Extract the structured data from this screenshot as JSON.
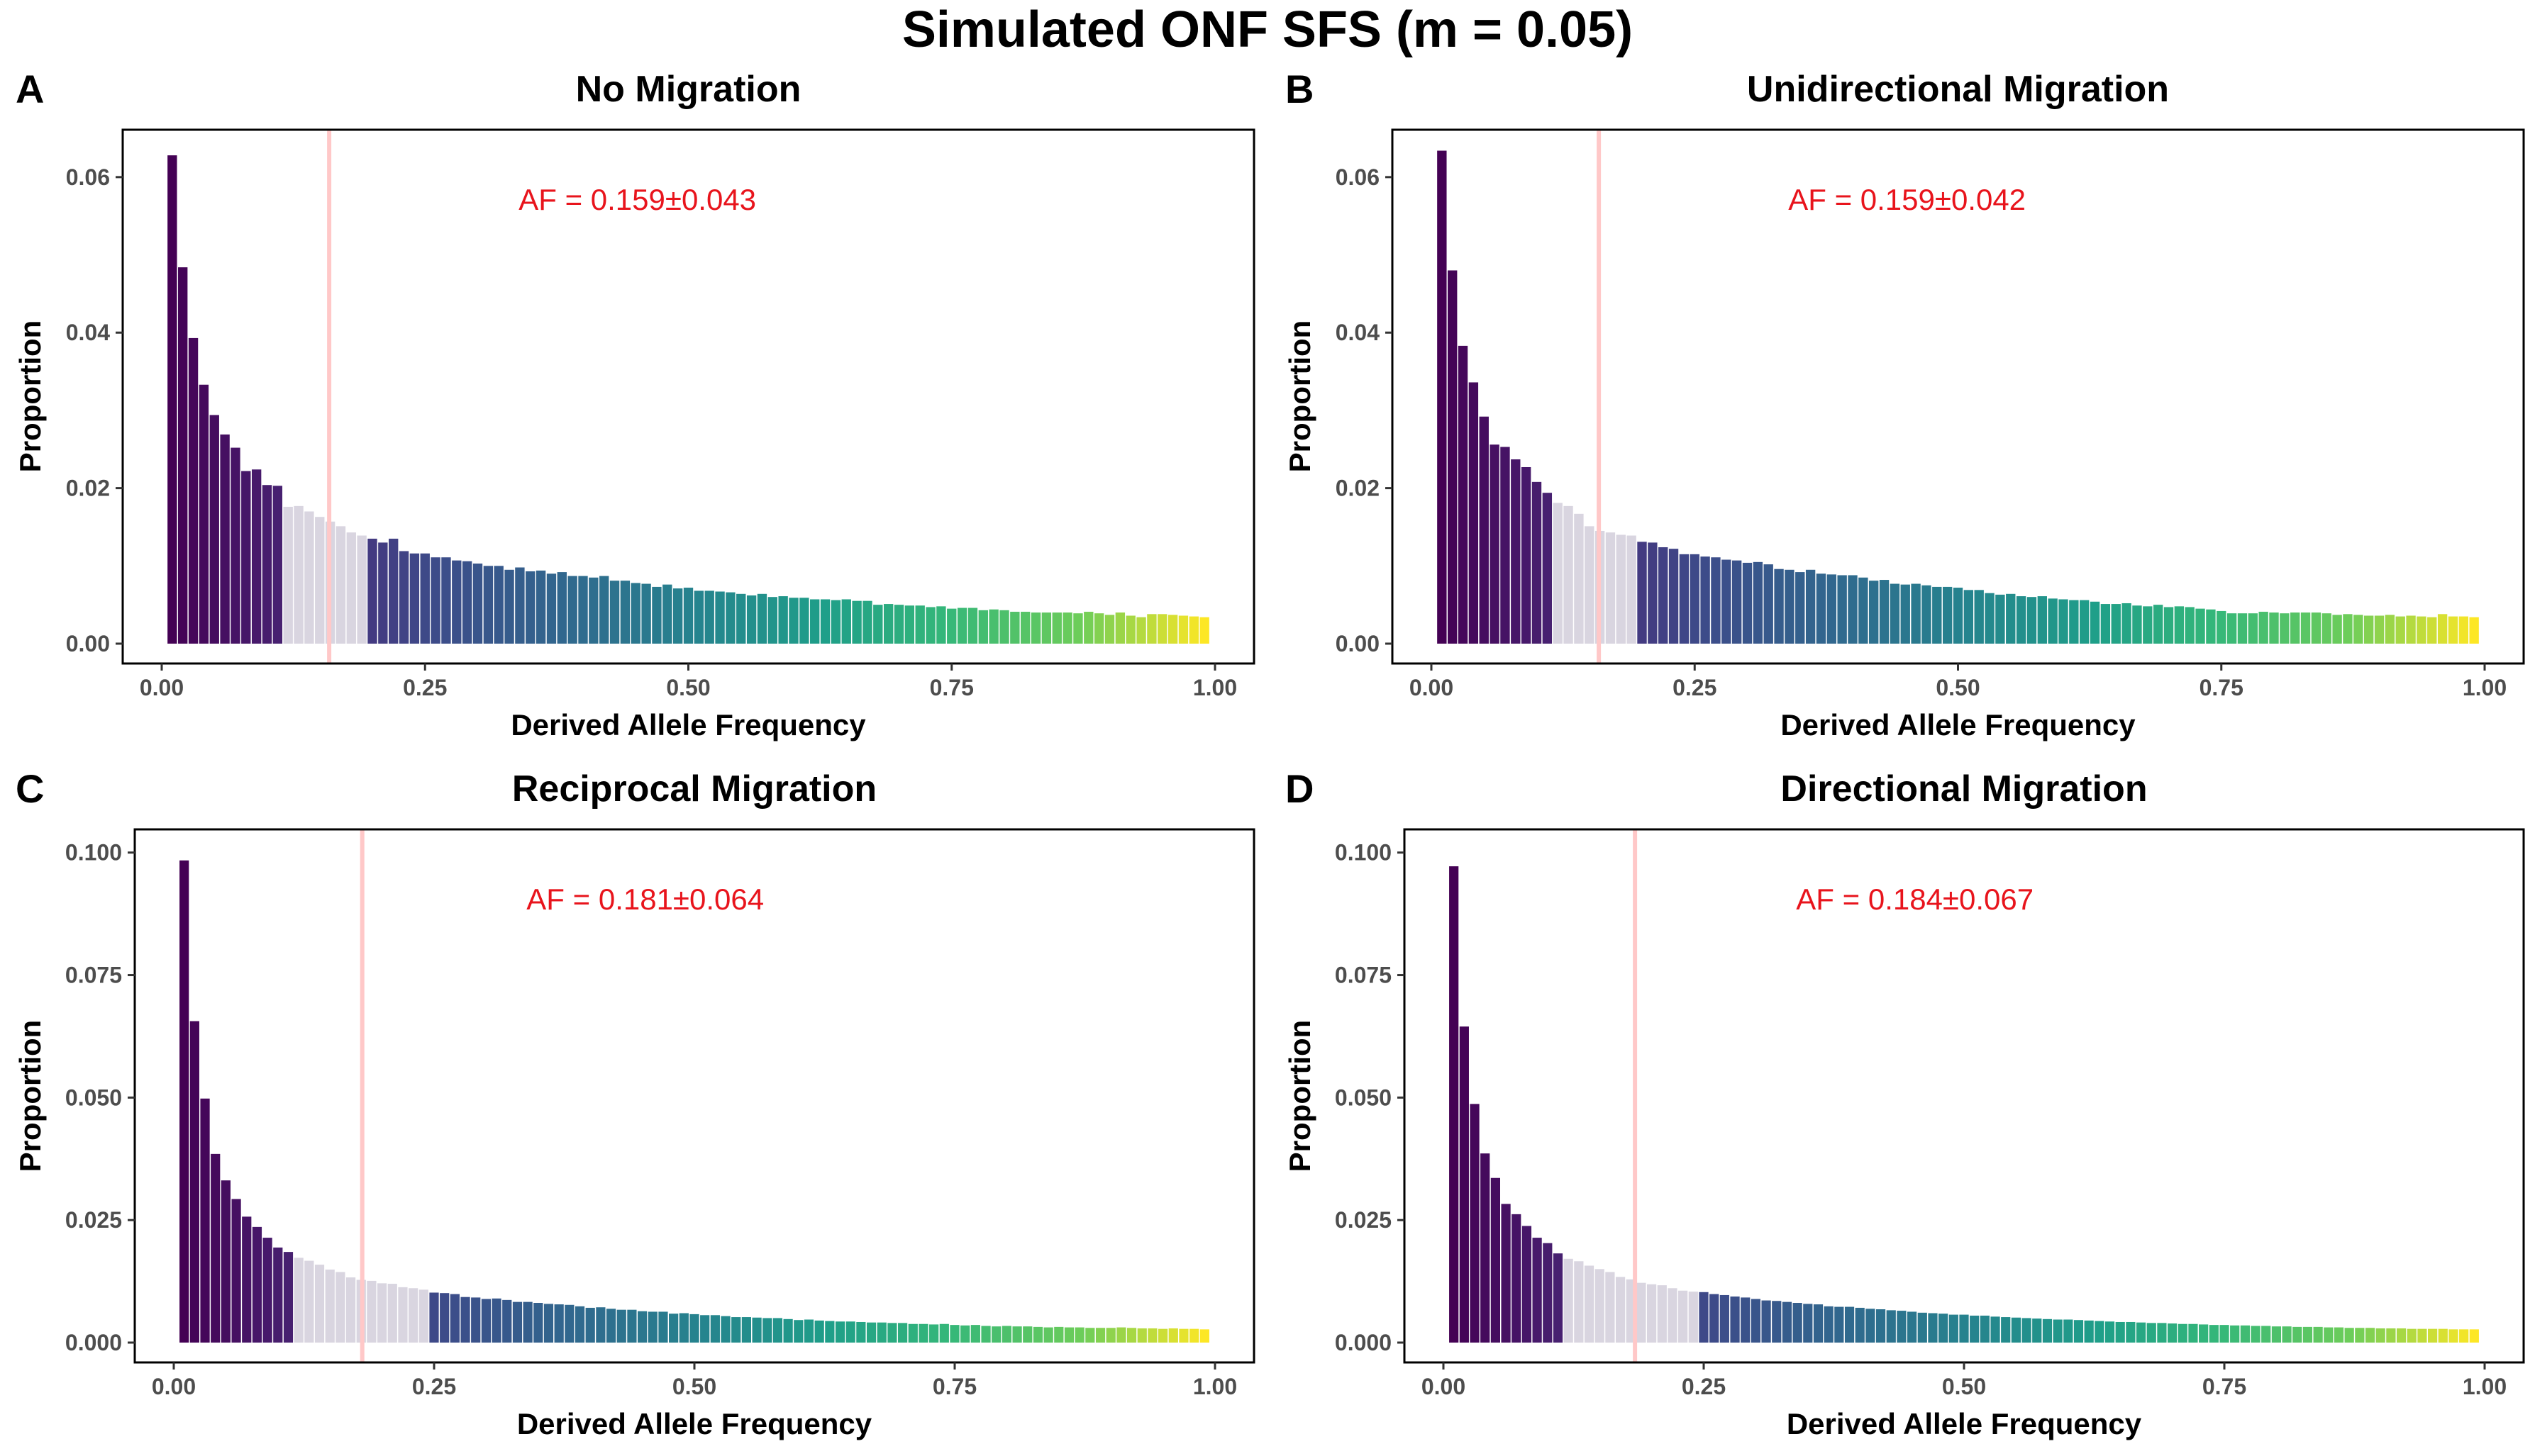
{
  "figure": {
    "title": "Simulated ONF SFS (m = 0.05)"
  },
  "colors": {
    "viridis_start": "#440154",
    "viridis_end": "#FDE725",
    "highlight_band": "#D9D5E0",
    "af_line": "#FFC8C8",
    "annotation": "#E8141C"
  },
  "chart_data": [
    {
      "panel": "A",
      "type": "bar",
      "title": "No Migration",
      "xlabel": "Derived Allele Frequency",
      "ylabel": "Proportion",
      "xlim": [
        0,
        1
      ],
      "ylim": [
        0,
        0.065
      ],
      "xticks": [
        0.0,
        0.25,
        0.5,
        0.75,
        1.0
      ],
      "xtick_labels": [
        "0.00",
        "0.25",
        "0.50",
        "0.75",
        "1.00"
      ],
      "yticks": [
        0.0,
        0.02,
        0.04,
        0.06
      ],
      "ytick_labels": [
        "0.00",
        "0.02",
        "0.04",
        "0.06"
      ],
      "af_mean": 0.159,
      "band": [
        0.12,
        0.2
      ],
      "annotation": "AF = 0.159±0.043",
      "x": [
        0.01,
        0.02,
        0.03,
        0.04,
        0.05,
        0.06,
        0.07,
        0.08,
        0.09,
        0.1,
        0.11,
        0.12,
        0.13,
        0.14,
        0.15,
        0.16,
        0.17,
        0.18,
        0.19,
        0.2,
        0.21,
        0.22,
        0.23,
        0.24,
        0.25,
        0.26,
        0.27,
        0.28,
        0.29,
        0.3,
        0.31,
        0.32,
        0.33,
        0.34,
        0.35,
        0.36,
        0.37,
        0.38,
        0.39,
        0.4,
        0.41,
        0.42,
        0.43,
        0.44,
        0.45,
        0.46,
        0.47,
        0.48,
        0.49,
        0.5,
        0.51,
        0.52,
        0.53,
        0.54,
        0.55,
        0.56,
        0.57,
        0.58,
        0.59,
        0.6,
        0.61,
        0.62,
        0.63,
        0.64,
        0.65,
        0.66,
        0.67,
        0.68,
        0.69,
        0.7,
        0.71,
        0.72,
        0.73,
        0.74,
        0.75,
        0.76,
        0.77,
        0.78,
        0.79,
        0.8,
        0.81,
        0.82,
        0.83,
        0.84,
        0.85,
        0.86,
        0.87,
        0.88,
        0.89,
        0.9,
        0.91,
        0.92,
        0.93,
        0.94,
        0.95,
        0.96,
        0.97,
        0.98,
        0.99
      ],
      "values": [
        0.0628,
        0.0484,
        0.0393,
        0.0333,
        0.0294,
        0.0269,
        0.0252,
        0.0222,
        0.0224,
        0.0204,
        0.0203,
        0.0176,
        0.0177,
        0.017,
        0.0163,
        0.0157,
        0.0151,
        0.0143,
        0.0139,
        0.0135,
        0.013,
        0.0135,
        0.0119,
        0.0116,
        0.0116,
        0.0111,
        0.0111,
        0.0107,
        0.0106,
        0.0103,
        0.01,
        0.01,
        0.0095,
        0.0098,
        0.0093,
        0.0094,
        0.009,
        0.0092,
        0.0087,
        0.0087,
        0.0085,
        0.0087,
        0.0081,
        0.0081,
        0.0078,
        0.0077,
        0.0073,
        0.0076,
        0.0071,
        0.0072,
        0.0068,
        0.0068,
        0.0067,
        0.0066,
        0.0064,
        0.0062,
        0.0064,
        0.006,
        0.0061,
        0.0059,
        0.0059,
        0.0057,
        0.0057,
        0.0056,
        0.0057,
        0.0055,
        0.0055,
        0.005,
        0.0051,
        0.005,
        0.0049,
        0.0049,
        0.0047,
        0.0048,
        0.0045,
        0.0046,
        0.0046,
        0.0043,
        0.0044,
        0.0043,
        0.0041,
        0.0041,
        0.004,
        0.004,
        0.004,
        0.004,
        0.0039,
        0.0041,
        0.0039,
        0.0037,
        0.004,
        0.0036,
        0.0034,
        0.0038,
        0.0038,
        0.0037,
        0.0036,
        0.0035,
        0.0034
      ]
    },
    {
      "panel": "B",
      "type": "bar",
      "title": "Unidirectional Migration",
      "xlabel": "Derived Allele Frequency",
      "ylabel": "Proportion",
      "xlim": [
        0,
        1
      ],
      "ylim": [
        0,
        0.065
      ],
      "xticks": [
        0.0,
        0.25,
        0.5,
        0.75,
        1.0
      ],
      "xtick_labels": [
        "0.00",
        "0.25",
        "0.50",
        "0.75",
        "1.00"
      ],
      "yticks": [
        0.0,
        0.02,
        0.04,
        0.06
      ],
      "ytick_labels": [
        "0.00",
        "0.02",
        "0.04",
        "0.06"
      ],
      "af_mean": 0.159,
      "band": [
        0.12,
        0.2
      ],
      "annotation": "AF = 0.159±0.042",
      "x": [
        0.01,
        0.02,
        0.03,
        0.04,
        0.05,
        0.06,
        0.07,
        0.08,
        0.09,
        0.1,
        0.11,
        0.12,
        0.13,
        0.14,
        0.15,
        0.16,
        0.17,
        0.18,
        0.19,
        0.2,
        0.21,
        0.22,
        0.23,
        0.24,
        0.25,
        0.26,
        0.27,
        0.28,
        0.29,
        0.3,
        0.31,
        0.32,
        0.33,
        0.34,
        0.35,
        0.36,
        0.37,
        0.38,
        0.39,
        0.4,
        0.41,
        0.42,
        0.43,
        0.44,
        0.45,
        0.46,
        0.47,
        0.48,
        0.49,
        0.5,
        0.51,
        0.52,
        0.53,
        0.54,
        0.55,
        0.56,
        0.57,
        0.58,
        0.59,
        0.6,
        0.61,
        0.62,
        0.63,
        0.64,
        0.65,
        0.66,
        0.67,
        0.68,
        0.69,
        0.7,
        0.71,
        0.72,
        0.73,
        0.74,
        0.75,
        0.76,
        0.77,
        0.78,
        0.79,
        0.8,
        0.81,
        0.82,
        0.83,
        0.84,
        0.85,
        0.86,
        0.87,
        0.88,
        0.89,
        0.9,
        0.91,
        0.92,
        0.93,
        0.94,
        0.95,
        0.96,
        0.97,
        0.98,
        0.99
      ],
      "values": [
        0.0634,
        0.048,
        0.0383,
        0.0336,
        0.0292,
        0.0256,
        0.0253,
        0.0237,
        0.0227,
        0.0208,
        0.0194,
        0.0181,
        0.0177,
        0.0167,
        0.0151,
        0.0145,
        0.0143,
        0.014,
        0.0139,
        0.0131,
        0.013,
        0.0124,
        0.0122,
        0.0115,
        0.0115,
        0.0112,
        0.0111,
        0.0108,
        0.0107,
        0.0104,
        0.0105,
        0.0102,
        0.0096,
        0.0095,
        0.0092,
        0.0095,
        0.009,
        0.0089,
        0.0088,
        0.0088,
        0.0085,
        0.0081,
        0.0082,
        0.0077,
        0.0076,
        0.0077,
        0.0075,
        0.0073,
        0.0073,
        0.0072,
        0.0069,
        0.0069,
        0.0065,
        0.0063,
        0.0064,
        0.0061,
        0.006,
        0.0061,
        0.0058,
        0.0057,
        0.0056,
        0.0056,
        0.0054,
        0.0051,
        0.0051,
        0.0052,
        0.0049,
        0.0048,
        0.005,
        0.0047,
        0.0048,
        0.0047,
        0.0045,
        0.0044,
        0.0042,
        0.0039,
        0.0039,
        0.0039,
        0.0041,
        0.004,
        0.0039,
        0.004,
        0.004,
        0.004,
        0.0039,
        0.0037,
        0.0038,
        0.0037,
        0.0036,
        0.0036,
        0.0037,
        0.0035,
        0.0036,
        0.0035,
        0.0034,
        0.0038,
        0.0035,
        0.0035,
        0.0034
      ]
    },
    {
      "panel": "C",
      "type": "bar",
      "title": "Reciprocal Migration",
      "xlabel": "Derived Allele Frequency",
      "ylabel": "Proportion",
      "xlim": [
        0,
        1
      ],
      "ylim": [
        0,
        0.103
      ],
      "xticks": [
        0.0,
        0.25,
        0.5,
        0.75,
        1.0
      ],
      "xtick_labels": [
        "0.00",
        "0.25",
        "0.50",
        "0.75",
        "1.00"
      ],
      "yticks": [
        0.0,
        0.025,
        0.05,
        0.075,
        0.1
      ],
      "ytick_labels": [
        "0.000",
        "0.025",
        "0.050",
        "0.075",
        "0.100"
      ],
      "af_mean": 0.181,
      "band": [
        0.12,
        0.25
      ],
      "annotation": "AF = 0.181±0.064",
      "x": [
        0.01,
        0.02,
        0.03,
        0.04,
        0.05,
        0.06,
        0.07,
        0.08,
        0.09,
        0.1,
        0.11,
        0.12,
        0.13,
        0.14,
        0.15,
        0.16,
        0.17,
        0.18,
        0.19,
        0.2,
        0.21,
        0.22,
        0.23,
        0.24,
        0.25,
        0.26,
        0.27,
        0.28,
        0.29,
        0.3,
        0.31,
        0.32,
        0.33,
        0.34,
        0.35,
        0.36,
        0.37,
        0.38,
        0.39,
        0.4,
        0.41,
        0.42,
        0.43,
        0.44,
        0.45,
        0.46,
        0.47,
        0.48,
        0.49,
        0.5,
        0.51,
        0.52,
        0.53,
        0.54,
        0.55,
        0.56,
        0.57,
        0.58,
        0.59,
        0.6,
        0.61,
        0.62,
        0.63,
        0.64,
        0.65,
        0.66,
        0.67,
        0.68,
        0.69,
        0.7,
        0.71,
        0.72,
        0.73,
        0.74,
        0.75,
        0.76,
        0.77,
        0.78,
        0.79,
        0.8,
        0.81,
        0.82,
        0.83,
        0.84,
        0.85,
        0.86,
        0.87,
        0.88,
        0.89,
        0.9,
        0.91,
        0.92,
        0.93,
        0.94,
        0.95,
        0.96,
        0.97,
        0.98,
        0.99
      ],
      "values": [
        0.0984,
        0.0656,
        0.0498,
        0.0385,
        0.0331,
        0.0293,
        0.0257,
        0.0236,
        0.0214,
        0.0194,
        0.0185,
        0.0173,
        0.0167,
        0.0159,
        0.0149,
        0.0144,
        0.0133,
        0.0128,
        0.0126,
        0.0121,
        0.012,
        0.0113,
        0.0111,
        0.0108,
        0.0102,
        0.0101,
        0.0099,
        0.0093,
        0.0092,
        0.0089,
        0.009,
        0.0087,
        0.0083,
        0.0083,
        0.0081,
        0.0079,
        0.0078,
        0.0077,
        0.0074,
        0.0071,
        0.0072,
        0.0069,
        0.0067,
        0.0067,
        0.0064,
        0.0063,
        0.0063,
        0.0059,
        0.006,
        0.0058,
        0.0056,
        0.0056,
        0.0054,
        0.0052,
        0.0052,
        0.0051,
        0.005,
        0.005,
        0.0048,
        0.0046,
        0.0047,
        0.0045,
        0.0044,
        0.0043,
        0.0043,
        0.0042,
        0.0041,
        0.0041,
        0.004,
        0.004,
        0.0038,
        0.0038,
        0.0037,
        0.0038,
        0.0036,
        0.0035,
        0.0036,
        0.0034,
        0.0033,
        0.0034,
        0.0033,
        0.0033,
        0.0032,
        0.0031,
        0.0032,
        0.0031,
        0.0031,
        0.003,
        0.003,
        0.003,
        0.0031,
        0.003,
        0.0029,
        0.0029,
        0.0028,
        0.0029,
        0.0028,
        0.0028,
        0.0027
      ]
    },
    {
      "panel": "D",
      "type": "bar",
      "title": "Directional Migration",
      "xlabel": "Derived Allele Frequency",
      "ylabel": "Proportion",
      "xlim": [
        0,
        1
      ],
      "ylim": [
        0,
        0.103
      ],
      "xticks": [
        0.0,
        0.25,
        0.5,
        0.75,
        1.0
      ],
      "xtick_labels": [
        "0.00",
        "0.25",
        "0.50",
        "0.75",
        "1.00"
      ],
      "yticks": [
        0.0,
        0.025,
        0.05,
        0.075,
        0.1
      ],
      "ytick_labels": [
        "0.000",
        "0.025",
        "0.050",
        "0.075",
        "0.100"
      ],
      "af_mean": 0.184,
      "band": [
        0.12,
        0.25
      ],
      "annotation": "AF = 0.184±0.067",
      "x": [
        0.01,
        0.02,
        0.03,
        0.04,
        0.05,
        0.06,
        0.07,
        0.08,
        0.09,
        0.1,
        0.11,
        0.12,
        0.13,
        0.14,
        0.15,
        0.16,
        0.17,
        0.18,
        0.19,
        0.2,
        0.21,
        0.22,
        0.23,
        0.24,
        0.25,
        0.26,
        0.27,
        0.28,
        0.29,
        0.3,
        0.31,
        0.32,
        0.33,
        0.34,
        0.35,
        0.36,
        0.37,
        0.38,
        0.39,
        0.4,
        0.41,
        0.42,
        0.43,
        0.44,
        0.45,
        0.46,
        0.47,
        0.48,
        0.49,
        0.5,
        0.51,
        0.52,
        0.53,
        0.54,
        0.55,
        0.56,
        0.57,
        0.58,
        0.59,
        0.6,
        0.61,
        0.62,
        0.63,
        0.64,
        0.65,
        0.66,
        0.67,
        0.68,
        0.69,
        0.7,
        0.71,
        0.72,
        0.73,
        0.74,
        0.75,
        0.76,
        0.77,
        0.78,
        0.79,
        0.8,
        0.81,
        0.82,
        0.83,
        0.84,
        0.85,
        0.86,
        0.87,
        0.88,
        0.89,
        0.9,
        0.91,
        0.92,
        0.93,
        0.94,
        0.95,
        0.96,
        0.97,
        0.98,
        0.99
      ],
      "values": [
        0.0972,
        0.0645,
        0.0487,
        0.0386,
        0.0336,
        0.0283,
        0.0262,
        0.0238,
        0.0214,
        0.0203,
        0.0182,
        0.0171,
        0.0166,
        0.0157,
        0.015,
        0.0144,
        0.0134,
        0.0129,
        0.0122,
        0.0119,
        0.0117,
        0.0111,
        0.0106,
        0.0104,
        0.0103,
        0.0099,
        0.0097,
        0.0094,
        0.0092,
        0.0089,
        0.0086,
        0.0085,
        0.0083,
        0.0081,
        0.0079,
        0.0078,
        0.0074,
        0.0073,
        0.0073,
        0.0071,
        0.0069,
        0.0068,
        0.0066,
        0.0065,
        0.0063,
        0.0061,
        0.006,
        0.0059,
        0.0057,
        0.0057,
        0.0055,
        0.0055,
        0.0053,
        0.0052,
        0.0051,
        0.005,
        0.0049,
        0.0048,
        0.0047,
        0.0047,
        0.0046,
        0.0045,
        0.0044,
        0.0043,
        0.0042,
        0.0042,
        0.0041,
        0.004,
        0.004,
        0.0039,
        0.0038,
        0.0038,
        0.0037,
        0.0036,
        0.0036,
        0.0035,
        0.0035,
        0.0034,
        0.0034,
        0.0033,
        0.0033,
        0.0032,
        0.0032,
        0.0032,
        0.0031,
        0.0031,
        0.003,
        0.003,
        0.003,
        0.0029,
        0.0029,
        0.0029,
        0.0028,
        0.0028,
        0.0028,
        0.0028,
        0.0027,
        0.0027,
        0.0027
      ]
    }
  ]
}
